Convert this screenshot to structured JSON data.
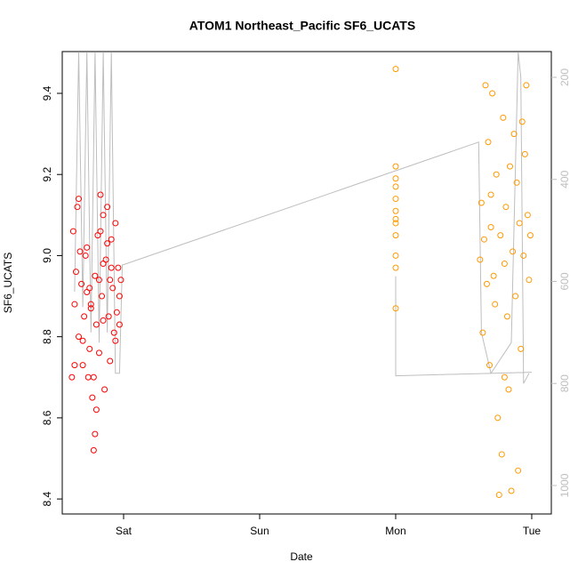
{
  "chart_data": {
    "type": "scatter",
    "title": "ATOM1 Northeast_Pacific SF6_UCATS",
    "x_label": "Date",
    "y_label": "SF6_UCATS",
    "xlim": [
      -0.451,
      3.144
    ],
    "xticks": [
      {
        "value": 0,
        "label": "Sat"
      },
      {
        "value": 1,
        "label": "Sun"
      },
      {
        "value": 2,
        "label": "Mon"
      },
      {
        "value": 3,
        "label": "Tue"
      }
    ],
    "ylim": [
      8.363,
      9.503
    ],
    "yticks": [
      8.4,
      8.6,
      8.8,
      {
        "value": 9,
        "label": "9.0"
      },
      9.2,
      9.4
    ],
    "y2lim": [
      1055.8,
      149.5
    ],
    "y2ticks": [
      200,
      400,
      600,
      800,
      1000
    ],
    "grid": false,
    "series": [
      {
        "color": "#ff0000",
        "x": [
          -0.38,
          -0.37,
          -0.36,
          -0.35,
          -0.34,
          -0.33,
          -0.32,
          -0.31,
          -0.3,
          -0.29,
          -0.28,
          -0.27,
          -0.26,
          -0.25,
          -0.24,
          -0.23,
          -0.22,
          -0.21,
          -0.2,
          -0.19,
          -0.18,
          -0.17,
          -0.16,
          -0.15,
          -0.14,
          -0.13,
          -0.12,
          -0.11,
          -0.1,
          -0.09,
          -0.08,
          -0.07,
          -0.06,
          -0.05,
          -0.04,
          -0.03,
          -0.02,
          -0.36,
          -0.33,
          -0.3,
          -0.27,
          -0.24,
          -0.21,
          -0.18,
          -0.15,
          -0.12,
          -0.09,
          -0.06,
          -0.03,
          -0.25,
          -0.2,
          -0.15,
          -0.1,
          -0.22,
          -0.17
        ],
        "values": [
          8.7,
          9.06,
          8.88,
          8.96,
          9.12,
          8.8,
          9.01,
          8.93,
          8.73,
          8.85,
          9.0,
          8.91,
          8.7,
          8.77,
          8.87,
          8.65,
          8.52,
          8.95,
          8.83,
          9.05,
          8.76,
          9.15,
          8.9,
          9.1,
          8.67,
          8.99,
          9.12,
          8.85,
          8.74,
          9.04,
          8.92,
          8.81,
          9.08,
          8.86,
          8.97,
          8.83,
          8.94,
          8.73,
          9.14,
          8.79,
          9.02,
          8.88,
          8.56,
          8.94,
          8.84,
          9.03,
          8.97,
          8.79,
          8.9,
          8.92,
          8.62,
          8.98,
          8.94,
          8.7,
          9.06
        ]
      },
      {
        "color": "#ff9900",
        "x": [
          2,
          2,
          2,
          2,
          2,
          2,
          2,
          2,
          2,
          2,
          2,
          2,
          2.62,
          2.63,
          2.64,
          2.65,
          2.66,
          2.67,
          2.68,
          2.69,
          2.7,
          2.71,
          2.72,
          2.73,
          2.74,
          2.75,
          2.76,
          2.77,
          2.78,
          2.79,
          2.8,
          2.81,
          2.82,
          2.83,
          2.84,
          2.85,
          2.86,
          2.87,
          2.88,
          2.89,
          2.9,
          2.91,
          2.92,
          2.93,
          2.94,
          2.95,
          2.96,
          2.97,
          2.98,
          2.99,
          2.7,
          2.8
        ],
        "values": [
          9.46,
          9.22,
          9.19,
          9.17,
          9.14,
          9.11,
          9.09,
          9.08,
          9.05,
          9.0,
          8.97,
          8.87,
          8.99,
          9.13,
          8.81,
          9.04,
          9.42,
          8.93,
          9.28,
          8.73,
          9.07,
          9.4,
          8.95,
          8.88,
          9.2,
          8.6,
          8.41,
          9.05,
          8.51,
          9.34,
          8.98,
          9.12,
          8.85,
          8.67,
          9.22,
          8.42,
          9.01,
          9.3,
          8.9,
          9.18,
          8.47,
          9.08,
          8.77,
          9.33,
          9.0,
          9.25,
          9.42,
          9.1,
          8.94,
          9.05,
          9.15,
          8.7
        ]
      },
      {
        "color": "#bebebe",
        "type": "line",
        "axis": "y2",
        "x": [
          -0.36,
          -0.33,
          -0.3,
          -0.27,
          -0.24,
          -0.21,
          -0.18,
          -0.15,
          -0.12,
          -0.09,
          -0.06,
          -0.03,
          -0.01,
          2.61,
          2.63,
          2.7,
          2.85,
          2.9,
          2.92,
          2.94,
          2.98,
          null,
          2.0,
          2.0,
          3.0
        ],
        "values": [
          620,
          150,
          650,
          150,
          700,
          150,
          720,
          150,
          700,
          150,
          780,
          780,
          568,
          327,
          700,
          780,
          720,
          150,
          200,
          800,
          780,
          null,
          590,
          785,
          778
        ]
      }
    ]
  }
}
